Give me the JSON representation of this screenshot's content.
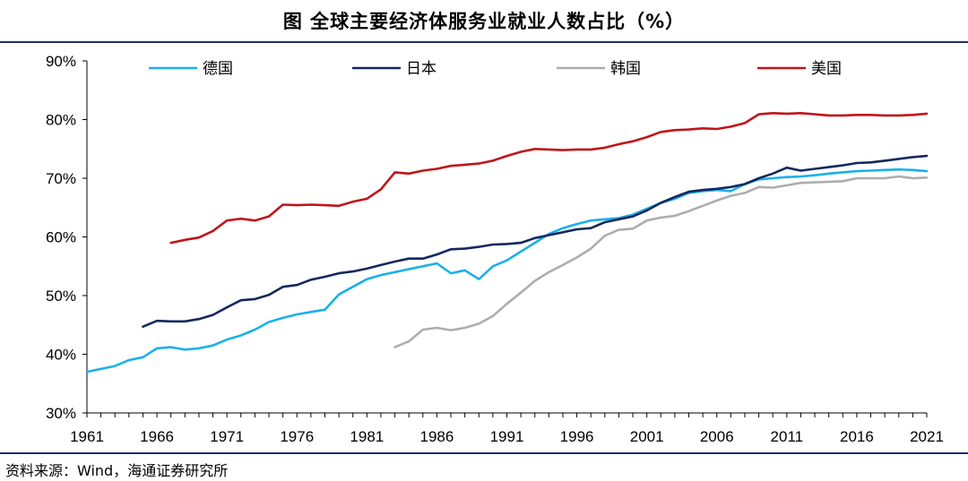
{
  "chart_data": {
    "type": "line",
    "title": "图  全球主要经济体服务业就业人数占比（%）",
    "source": "资料来源：Wind，海通证券研究所",
    "xlabel": "",
    "ylabel": "",
    "xlim": [
      1961,
      2021
    ],
    "ylim": [
      30,
      90
    ],
    "x_ticks": [
      "1961",
      "1966",
      "1971",
      "1976",
      "1981",
      "1986",
      "1991",
      "1996",
      "2001",
      "2006",
      "2011",
      "2016",
      "2021"
    ],
    "y_ticks": [
      "30%",
      "40%",
      "50%",
      "60%",
      "70%",
      "80%",
      "90%"
    ],
    "legend_position": "top",
    "series": [
      {
        "name": "德国",
        "color": "#1ab0ea",
        "x": [
          1961,
          1962,
          1963,
          1964,
          1965,
          1966,
          1967,
          1968,
          1969,
          1970,
          1971,
          1972,
          1973,
          1974,
          1975,
          1976,
          1977,
          1978,
          1979,
          1980,
          1981,
          1982,
          1983,
          1984,
          1985,
          1986,
          1987,
          1988,
          1989,
          1990,
          1991,
          1992,
          1993,
          1994,
          1995,
          1996,
          1997,
          1998,
          1999,
          2000,
          2001,
          2002,
          2003,
          2004,
          2005,
          2006,
          2007,
          2008,
          2009,
          2010,
          2011,
          2012,
          2013,
          2014,
          2015,
          2016,
          2017,
          2018,
          2019,
          2020,
          2021
        ],
        "values": [
          37.0,
          37.5,
          38.0,
          39.0,
          39.5,
          41.0,
          41.2,
          40.8,
          41.0,
          41.5,
          42.5,
          43.2,
          44.2,
          45.5,
          46.2,
          46.8,
          47.2,
          47.6,
          50.2,
          51.5,
          52.8,
          53.5,
          54.0,
          54.5,
          55.0,
          55.5,
          53.8,
          54.3,
          52.8,
          55.0,
          56.0,
          57.5,
          59.0,
          60.5,
          61.5,
          62.2,
          62.8,
          63.0,
          63.2,
          63.8,
          64.8,
          65.8,
          66.5,
          67.5,
          67.8,
          68.0,
          67.8,
          69.0,
          69.8,
          70.0,
          70.2,
          70.3,
          70.5,
          70.8,
          71.0,
          71.2,
          71.3,
          71.4,
          71.5,
          71.4,
          71.2
        ]
      },
      {
        "name": "日本",
        "color": "#14285f",
        "x": [
          1965,
          1966,
          1967,
          1968,
          1969,
          1970,
          1971,
          1972,
          1973,
          1974,
          1975,
          1976,
          1977,
          1978,
          1979,
          1980,
          1981,
          1982,
          1983,
          1984,
          1985,
          1986,
          1987,
          1988,
          1989,
          1990,
          1991,
          1992,
          1993,
          1994,
          1995,
          1996,
          1997,
          1998,
          1999,
          2000,
          2001,
          2002,
          2003,
          2004,
          2005,
          2006,
          2007,
          2008,
          2009,
          2010,
          2011,
          2012,
          2013,
          2014,
          2015,
          2016,
          2017,
          2018,
          2019,
          2020,
          2021
        ],
        "values": [
          44.7,
          45.7,
          45.6,
          45.6,
          46.0,
          46.7,
          48.0,
          49.2,
          49.4,
          50.1,
          51.5,
          51.8,
          52.7,
          53.2,
          53.8,
          54.1,
          54.6,
          55.2,
          55.8,
          56.3,
          56.3,
          57.0,
          57.9,
          58.0,
          58.3,
          58.7,
          58.8,
          59.0,
          59.8,
          60.3,
          60.8,
          61.3,
          61.5,
          62.5,
          63.0,
          63.5,
          64.5,
          65.8,
          66.8,
          67.7,
          68.0,
          68.2,
          68.5,
          69.0,
          70.0,
          70.8,
          71.8,
          71.3,
          71.6,
          71.9,
          72.2,
          72.6,
          72.7,
          73.0,
          73.3,
          73.6,
          73.8
        ]
      },
      {
        "name": "韩国",
        "color": "#adadad",
        "x": [
          1983,
          1984,
          1985,
          1986,
          1987,
          1988,
          1989,
          1990,
          1991,
          1992,
          1993,
          1994,
          1995,
          1996,
          1997,
          1998,
          1999,
          2000,
          2001,
          2002,
          2003,
          2004,
          2005,
          2006,
          2007,
          2008,
          2009,
          2010,
          2011,
          2012,
          2013,
          2014,
          2015,
          2016,
          2017,
          2018,
          2019,
          2020,
          2021
        ],
        "values": [
          41.2,
          42.2,
          44.2,
          44.5,
          44.1,
          44.5,
          45.2,
          46.5,
          48.6,
          50.5,
          52.5,
          54.0,
          55.2,
          56.5,
          58.0,
          60.2,
          61.2,
          61.4,
          62.8,
          63.3,
          63.6,
          64.4,
          65.3,
          66.2,
          67.0,
          67.5,
          68.5,
          68.4,
          68.8,
          69.2,
          69.3,
          69.4,
          69.5,
          70.0,
          70.0,
          70.0,
          70.3,
          70.0,
          70.1
        ]
      },
      {
        "name": "美国",
        "color": "#c0151a",
        "x": [
          1967,
          1968,
          1969,
          1970,
          1971,
          1972,
          1973,
          1974,
          1975,
          1976,
          1977,
          1978,
          1979,
          1980,
          1981,
          1982,
          1983,
          1984,
          1985,
          1986,
          1987,
          1988,
          1989,
          1990,
          1991,
          1992,
          1993,
          1994,
          1995,
          1996,
          1997,
          1998,
          1999,
          2000,
          2001,
          2002,
          2003,
          2004,
          2005,
          2006,
          2007,
          2008,
          2009,
          2010,
          2011,
          2012,
          2013,
          2014,
          2015,
          2016,
          2017,
          2018,
          2019,
          2020,
          2021
        ],
        "values": [
          59.0,
          59.5,
          59.9,
          61.0,
          62.8,
          63.1,
          62.8,
          63.5,
          65.5,
          65.4,
          65.5,
          65.4,
          65.3,
          66.0,
          66.5,
          68.1,
          71.0,
          70.8,
          71.3,
          71.6,
          72.1,
          72.3,
          72.5,
          73.0,
          73.8,
          74.5,
          75.0,
          74.9,
          74.8,
          74.9,
          74.9,
          75.2,
          75.8,
          76.3,
          77.0,
          77.9,
          78.2,
          78.3,
          78.5,
          78.4,
          78.8,
          79.4,
          80.9,
          81.1,
          81.0,
          81.1,
          80.9,
          80.7,
          80.7,
          80.8,
          80.8,
          80.7,
          80.7,
          80.8,
          81.0
        ]
      }
    ]
  }
}
